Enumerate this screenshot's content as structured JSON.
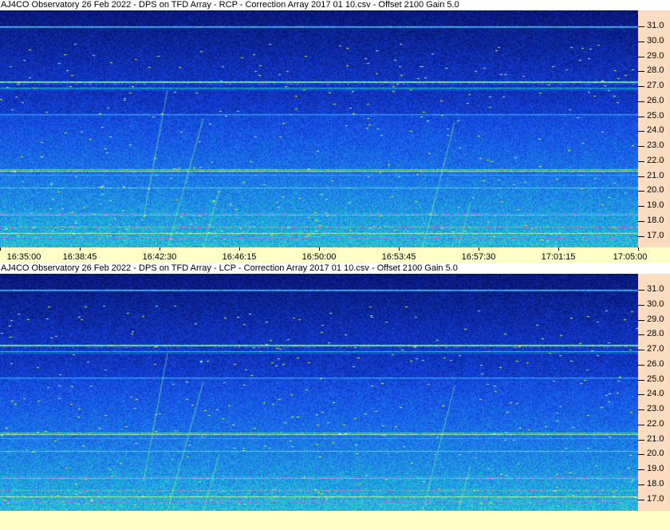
{
  "panels": [
    {
      "title": "AJ4CO Observatory 26 Feb 2022  -  DPS on TFD Array  -  RCP  -  Correction Array 2017 01 10.csv  -  Offset 2100  Gain 5.0",
      "polarization": "RCP"
    },
    {
      "title": "AJ4CO Observatory 26 Feb 2022  -  DPS on TFD Array  -  LCP  -  Correction Array 2017 01 10.csv  -  Offset 2100  Gain 5.0",
      "polarization": "LCP"
    }
  ],
  "freq_ticks": [
    "31.0",
    "30.0",
    "29.0",
    "28.0",
    "27.0",
    "26.0",
    "25.0",
    "24.0",
    "23.0",
    "22.0",
    "21.0",
    "20.0",
    "19.0",
    "18.0",
    "17.0"
  ],
  "time_ticks": [
    "16:35:00",
    "16:38:45",
    "16:42:30",
    "16:46:15",
    "16:50:00",
    "16:53:45",
    "16:57:30",
    "17:01:15",
    "17:05:00"
  ],
  "colors": {
    "low": "#000040",
    "mid": "#1040e0",
    "high": "#20c0e0",
    "axis_bg": "#fcdcc0",
    "time_bg": "#ffffc8"
  }
}
